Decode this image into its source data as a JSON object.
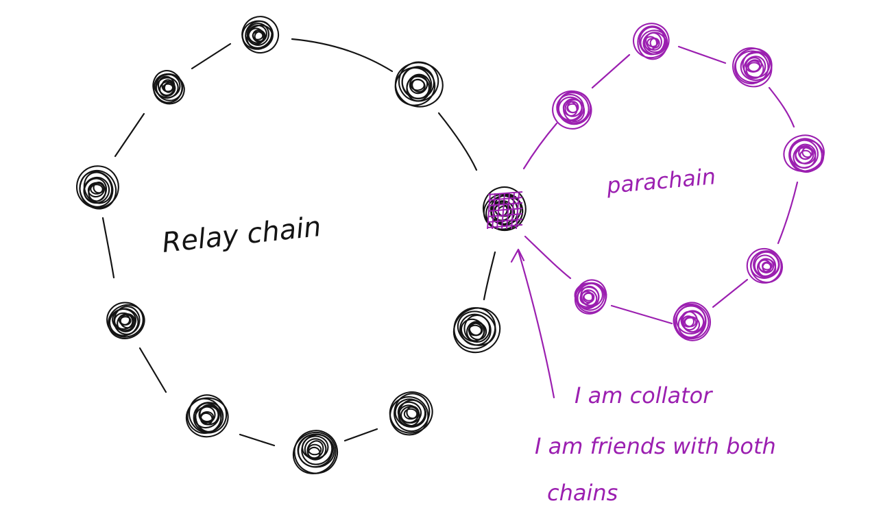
{
  "colors": {
    "relay": "#141414",
    "parachain": "#9b1fb0",
    "background": "#ffffff"
  },
  "labels": {
    "relay_chain": "Relay chain",
    "parachain": "parachain",
    "collator_line1": "I am collator",
    "collator_line2": "I am friends with both",
    "collator_line3": "chains"
  },
  "relay_chain": {
    "node_count": 10,
    "node_color": "relay"
  },
  "parachain": {
    "node_count": 8,
    "node_color": "parachain"
  },
  "shared_node": {
    "role": "collator",
    "colors": [
      "relay",
      "parachain"
    ]
  }
}
